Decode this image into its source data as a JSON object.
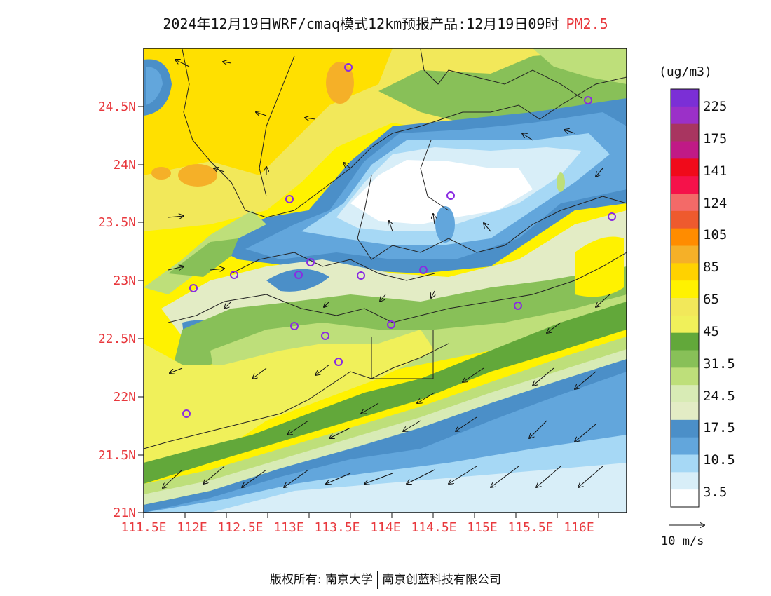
{
  "title": {
    "main": "2024年12月19日WRF/cmaq模式12km预报产品:12月19日09时",
    "variable": "PM2.5"
  },
  "axes": {
    "lat_labels": [
      "21N",
      "21.5N",
      "22N",
      "22.5N",
      "23N",
      "23.5N",
      "24N",
      "24.5N"
    ],
    "lon_labels": [
      "111.5E",
      "112E",
      "112.5E",
      "113E",
      "113.5E",
      "114E",
      "114.5E",
      "115E",
      "115.5E",
      "116E"
    ]
  },
  "colorbar": {
    "unit": "(ug/m3)",
    "labels": [
      "225",
      "175",
      "141",
      "124",
      "105",
      "85",
      "65",
      "45",
      "31.5",
      "24.5",
      "17.5",
      "10.5",
      "3.5"
    ],
    "colors": [
      "#7b2fd6",
      "#9b30c8",
      "#a83560",
      "#c01a86",
      "#f00a1a",
      "#f5124a",
      "#f36a68",
      "#ee5a2e",
      "#ff8c00",
      "#f5b028",
      "#ffd200",
      "#fff200",
      "#f2e85a",
      "#f0f05a",
      "#62a83a",
      "#88c058",
      "#bedf7a",
      "#d8ebb5",
      "#e3ecc5",
      "#4b8fc8",
      "#62a6dc",
      "#a6d8f5",
      "#d8eef8",
      "#ffffff"
    ]
  },
  "vector_legend": {
    "label": "10 m/s"
  },
  "footer": {
    "left": "版权所有: 南京大学",
    "right": "南京创蓝科技有限公司"
  }
}
